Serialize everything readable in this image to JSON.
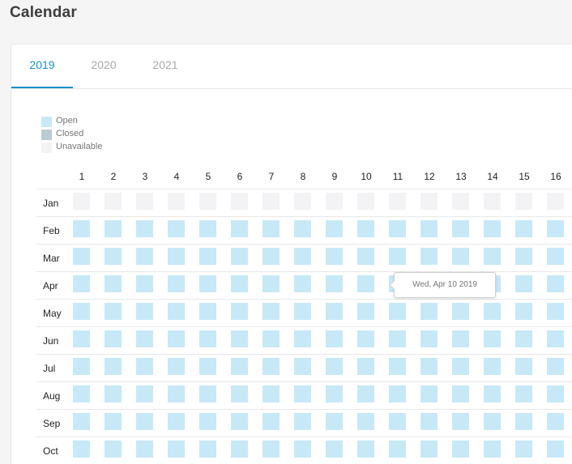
{
  "page": {
    "title": "Calendar"
  },
  "tabs": [
    {
      "label": "2019",
      "active": true
    },
    {
      "label": "2020",
      "active": false
    },
    {
      "label": "2021",
      "active": false
    }
  ],
  "legend": [
    {
      "key": "open",
      "label": "Open",
      "color": "#c7e8f7"
    },
    {
      "key": "closed",
      "label": "Closed",
      "color": "#b9cbd4"
    },
    {
      "key": "unavailable",
      "label": "Unavailable",
      "color": "#f3f3f5"
    }
  ],
  "calendar": {
    "days": [
      "1",
      "2",
      "3",
      "4",
      "5",
      "6",
      "7",
      "8",
      "9",
      "10",
      "11",
      "12",
      "13",
      "14",
      "15",
      "16"
    ],
    "months": [
      {
        "label": "Jan",
        "status": "unavailable"
      },
      {
        "label": "Feb",
        "status": "open"
      },
      {
        "label": "Mar",
        "status": "open"
      },
      {
        "label": "Apr",
        "status": "open"
      },
      {
        "label": "May",
        "status": "open"
      },
      {
        "label": "Jun",
        "status": "open"
      },
      {
        "label": "Jul",
        "status": "open"
      },
      {
        "label": "Aug",
        "status": "open"
      },
      {
        "label": "Sep",
        "status": "open"
      },
      {
        "label": "Oct",
        "status": "open"
      }
    ]
  },
  "tooltip": {
    "text": "Wed, Apr 10 2019"
  }
}
